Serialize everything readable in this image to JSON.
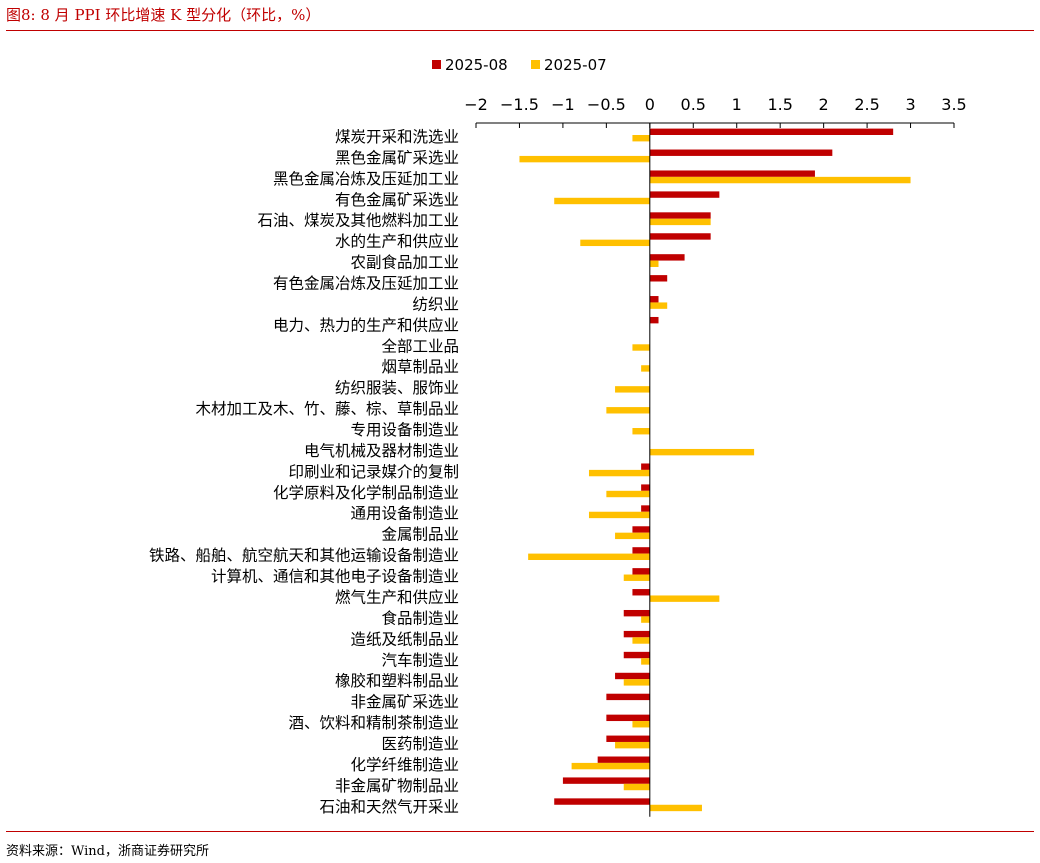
{
  "figure": {
    "title": "图8:  8 月 PPI 环比增速 K 型分化（环比，%）",
    "source": "资料来源：Wind，浙商证券研究所"
  },
  "colors": {
    "series_2025_08": "#c00000",
    "series_2025_07": "#ffc000",
    "rule": "#c00000"
  },
  "chart_data": {
    "type": "bar",
    "orientation": "horizontal",
    "title": "",
    "xlabel": "",
    "ylabel": "",
    "xlim": [
      -2,
      3.5
    ],
    "xticks": [
      "−2",
      "−1.5",
      "−1",
      "−0.5",
      "0",
      "0.5",
      "1",
      "1.5",
      "2",
      "2.5",
      "3",
      "3.5"
    ],
    "legend_position": "top",
    "grid": false,
    "categories": [
      "煤炭开采和洗选业",
      "黑色金属矿采选业",
      "黑色金属冶炼及压延加工业",
      "有色金属矿采选业",
      "石油、煤炭及其他燃料加工业",
      "水的生产和供应业",
      "农副食品加工业",
      "有色金属冶炼及压延加工业",
      "纺织业",
      "电力、热力的生产和供应业",
      "全部工业品",
      "烟草制品业",
      "纺织服装、服饰业",
      "木材加工及木、竹、藤、棕、草制品业",
      "专用设备制造业",
      "电气机械及器材制造业",
      "印刷业和记录媒介的复制",
      "化学原料及化学制品制造业",
      "通用设备制造业",
      "金属制品业",
      "铁路、船舶、航空航天和其他运输设备制造业",
      "计算机、通信和其他电子设备制造业",
      "燃气生产和供应业",
      "食品制造业",
      "造纸及纸制品业",
      "汽车制造业",
      "橡胶和塑料制品业",
      "非金属矿采选业",
      "酒、饮料和精制茶制造业",
      "医药制造业",
      "化学纤维制造业",
      "非金属矿物制品业",
      "石油和天然气开采业"
    ],
    "series": [
      {
        "name": "2025-08",
        "values": [
          2.8,
          2.1,
          1.9,
          0.8,
          0.7,
          0.7,
          0.4,
          0.2,
          0.1,
          0.1,
          0.0,
          0.0,
          0.0,
          0.0,
          0.0,
          0.0,
          -0.1,
          -0.1,
          -0.1,
          -0.2,
          -0.2,
          -0.2,
          -0.2,
          -0.3,
          -0.3,
          -0.3,
          -0.4,
          -0.5,
          -0.5,
          -0.5,
          -0.6,
          -1.0,
          -1.1
        ]
      },
      {
        "name": "2025-07",
        "values": [
          -0.2,
          -1.5,
          3.0,
          -1.1,
          0.7,
          -0.8,
          0.1,
          0.0,
          0.2,
          0.0,
          -0.2,
          -0.1,
          -0.4,
          -0.5,
          -0.2,
          1.2,
          -0.7,
          -0.5,
          -0.7,
          -0.4,
          -1.4,
          -0.3,
          0.8,
          -0.1,
          -0.2,
          -0.1,
          -0.3,
          0.0,
          -0.2,
          -0.4,
          -0.9,
          -0.3,
          0.6
        ]
      }
    ]
  }
}
